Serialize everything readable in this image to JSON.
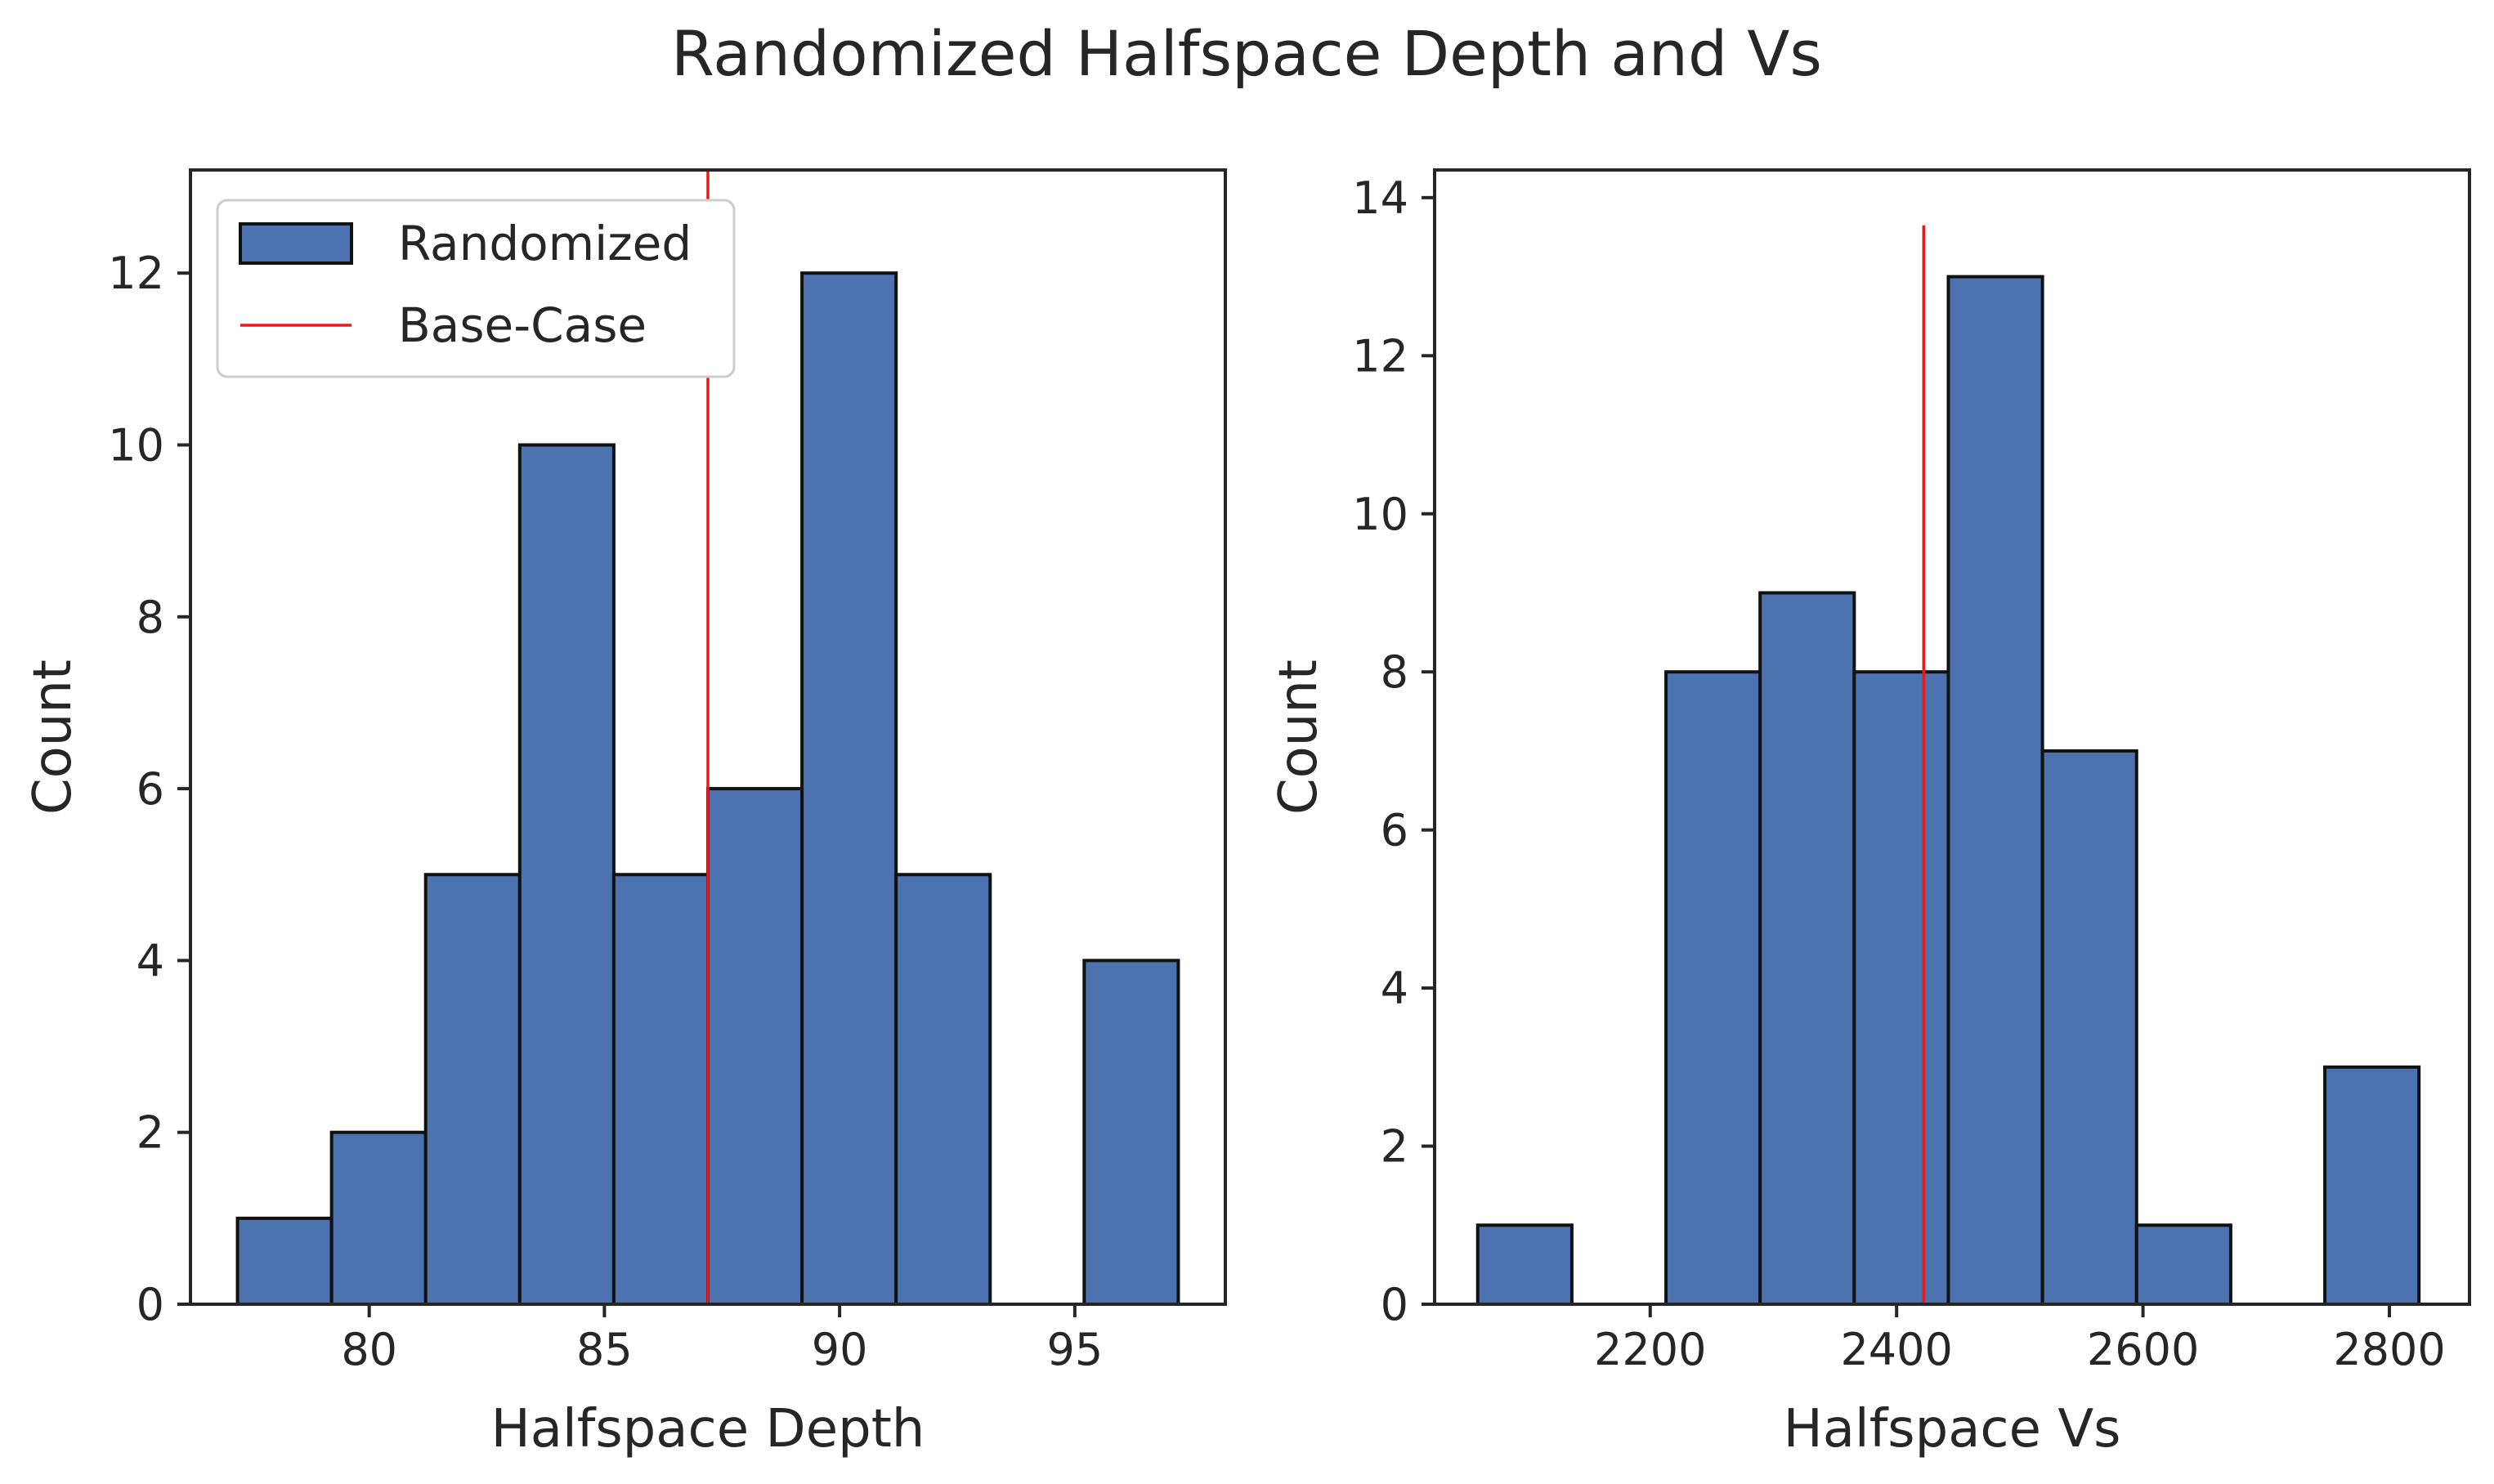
{
  "suptitle": "Randomized Halfspace Depth and Vs",
  "chart_data": [
    {
      "type": "bar",
      "subtype": "histogram",
      "xlabel": "Halfspace Depth",
      "ylabel": "Count",
      "xlim": [
        76.2,
        98.2
      ],
      "ylim": [
        0,
        13.2
      ],
      "xticks": [
        80,
        85,
        90,
        95
      ],
      "yticks": [
        0,
        2,
        4,
        6,
        8,
        10,
        12
      ],
      "bin_edges": [
        77.2,
        79.2,
        81.2,
        83.2,
        85.2,
        87.2,
        89.2,
        91.2,
        93.2,
        95.2,
        97.2
      ],
      "values": [
        1,
        2,
        5,
        10,
        5,
        6,
        12,
        5,
        0,
        4
      ],
      "bar_color": "#4c72b0",
      "reference_line": {
        "x": 87.2,
        "color": "#e8191b",
        "y_top": 13.2
      },
      "legend": {
        "location": "upper-left",
        "entries": [
          {
            "label": "Randomized",
            "kind": "patch",
            "color": "#4c72b0"
          },
          {
            "label": "Base-Case",
            "kind": "line",
            "color": "#e8191b"
          }
        ]
      },
      "grid": false
    },
    {
      "type": "bar",
      "subtype": "histogram",
      "xlabel": "Halfspace Vs",
      "ylabel": "Count",
      "xlim": [
        2025,
        2865
      ],
      "ylim": [
        0,
        14.35
      ],
      "xticks": [
        2200,
        2400,
        2600,
        2800
      ],
      "yticks": [
        0,
        2,
        4,
        6,
        8,
        10,
        12,
        14
      ],
      "bin_edges": [
        2060,
        2136.4,
        2212.8,
        2289.2,
        2365.6,
        2442,
        2518.4,
        2594.8,
        2671.2,
        2747.6,
        2824
      ],
      "values": [
        1,
        0,
        8,
        9,
        8,
        13,
        7,
        1,
        0,
        3
      ],
      "bar_color": "#4c72b0",
      "reference_line": {
        "x": 2422,
        "color": "#e8191b",
        "y_top": 13.65
      },
      "grid": false
    }
  ]
}
